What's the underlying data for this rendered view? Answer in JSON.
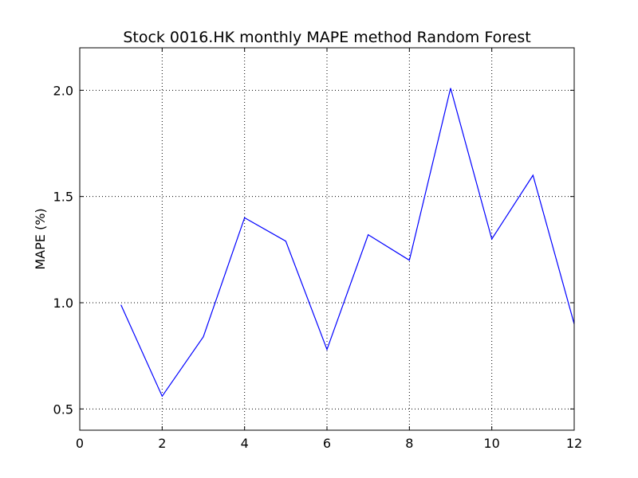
{
  "chart_data": {
    "type": "line",
    "title": "Stock 0016.HK monthly MAPE method Random Forest",
    "xlabel": "",
    "ylabel": "MAPE (%)",
    "xlim": [
      0,
      12
    ],
    "ylim": [
      0.4,
      2.2
    ],
    "x_ticks": [
      0,
      2,
      4,
      6,
      8,
      10,
      12
    ],
    "x_tick_labels": [
      "0",
      "2",
      "4",
      "6",
      "8",
      "10",
      "12"
    ],
    "y_ticks": [
      0.5,
      1.0,
      1.5,
      2.0
    ],
    "y_tick_labels": [
      "0.5",
      "1.0",
      "1.5",
      "2.0"
    ],
    "grid": true,
    "series": [
      {
        "color": "#0000ff",
        "x": [
          1,
          2,
          3,
          4,
          5,
          6,
          7,
          8,
          9,
          10,
          11,
          12
        ],
        "values": [
          0.99,
          0.56,
          0.84,
          1.4,
          1.29,
          0.78,
          1.32,
          1.2,
          2.01,
          1.3,
          1.6,
          0.9
        ]
      }
    ]
  }
}
